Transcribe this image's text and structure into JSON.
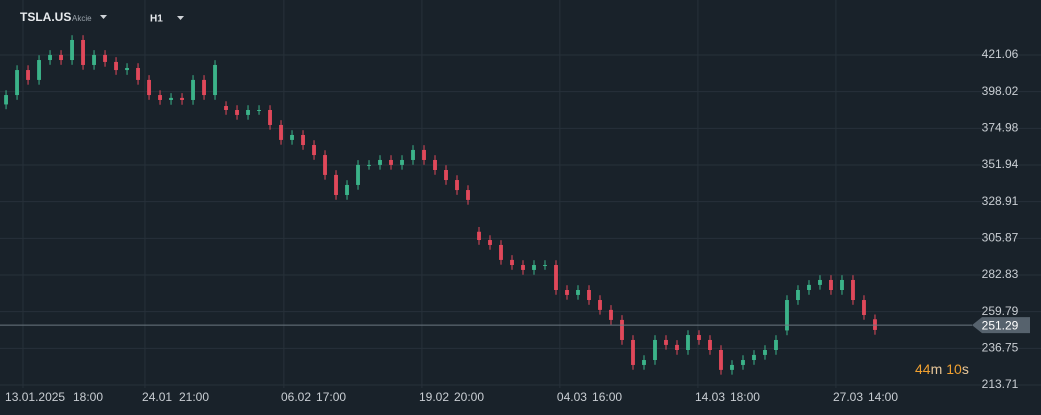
{
  "header": {
    "symbol": "TSLA.US",
    "asset_class": "Akcie",
    "timeframe": "H1"
  },
  "countdown": {
    "minutes": "44",
    "minutes_unit": "m",
    "seconds": "10",
    "seconds_unit": "s"
  },
  "chart_data": {
    "type": "candlestick",
    "x": [
      0,
      1,
      2,
      3,
      4,
      5,
      6,
      7,
      8,
      9,
      10,
      11,
      12,
      13,
      14,
      15,
      16,
      17,
      18,
      19,
      20,
      21,
      22,
      23,
      24,
      25,
      26,
      27,
      28,
      29,
      30,
      31,
      32,
      33,
      34,
      35,
      36,
      37,
      38,
      39,
      40,
      41,
      42,
      43,
      44,
      45,
      46,
      47,
      48,
      49,
      50,
      51,
      52,
      53,
      54,
      55,
      56,
      57,
      58,
      59,
      60,
      61,
      62,
      63,
      64,
      65,
      66,
      67,
      68,
      69,
      70,
      71,
      72,
      73,
      74,
      75,
      76,
      77,
      78,
      79
    ],
    "open": [
      390.0,
      395.9,
      411.6,
      405.4,
      417.9,
      421.1,
      417.9,
      430.5,
      414.8,
      421.1,
      416.7,
      411.6,
      412.9,
      405.4,
      395.9,
      392.8,
      394.1,
      392.8,
      405.4,
      395.9,
      389.0,
      386.5,
      383.4,
      386.5,
      386.5,
      377.1,
      367.7,
      370.8,
      364.5,
      358.2,
      345.7,
      333.1,
      339.4,
      352.0,
      352.0,
      355.1,
      352.0,
      355.1,
      361.4,
      355.1,
      348.8,
      342.5,
      336.2,
      310.0,
      304.8,
      301.7,
      292.3,
      289.1,
      286.0,
      289.1,
      289.1,
      273.4,
      270.3,
      273.4,
      267.1,
      260.9,
      254.6,
      242.0,
      226.3,
      229.4,
      242.0,
      238.9,
      235.7,
      245.1,
      242.0,
      235.7,
      223.2,
      226.3,
      229.4,
      232.6,
      235.7,
      248.0,
      267.1,
      273.4,
      276.6,
      279.7,
      273.4,
      279.7,
      267.1,
      255.0
    ],
    "high": [
      398.9,
      414.6,
      414.6,
      420.9,
      424.1,
      424.1,
      433.5,
      433.5,
      424.1,
      424.1,
      419.7,
      415.9,
      415.9,
      408.4,
      398.9,
      397.1,
      397.1,
      408.4,
      408.4,
      417.8,
      392.0,
      389.5,
      389.5,
      389.5,
      389.5,
      380.1,
      373.8,
      373.8,
      367.5,
      361.2,
      348.7,
      342.4,
      355.0,
      355.0,
      358.1,
      358.1,
      358.1,
      364.4,
      364.4,
      358.1,
      351.8,
      345.5,
      339.2,
      313.0,
      307.8,
      304.7,
      295.3,
      292.1,
      292.1,
      292.1,
      292.1,
      276.4,
      276.4,
      276.4,
      270.1,
      263.9,
      257.6,
      245.0,
      232.4,
      245.0,
      245.0,
      241.9,
      248.1,
      248.1,
      245.0,
      238.7,
      229.3,
      232.4,
      235.6,
      238.7,
      245.0,
      270.1,
      276.4,
      279.6,
      282.7,
      282.7,
      282.7,
      282.7,
      270.1,
      258.0
    ],
    "low": [
      387.0,
      392.9,
      402.4,
      402.4,
      414.9,
      414.9,
      414.9,
      411.8,
      411.8,
      413.7,
      408.6,
      408.6,
      402.4,
      392.9,
      389.8,
      389.8,
      389.8,
      389.8,
      392.9,
      392.9,
      383.5,
      380.4,
      380.4,
      383.5,
      374.1,
      364.7,
      364.7,
      361.5,
      355.2,
      342.7,
      330.1,
      330.1,
      336.4,
      349.0,
      349.0,
      349.0,
      349.0,
      352.1,
      352.1,
      345.8,
      339.5,
      333.2,
      327.0,
      301.8,
      298.7,
      289.3,
      286.1,
      283.0,
      283.0,
      286.1,
      270.4,
      267.3,
      267.3,
      264.1,
      257.9,
      251.6,
      239.0,
      223.3,
      223.3,
      226.4,
      235.9,
      232.7,
      232.7,
      239.0,
      232.7,
      220.2,
      220.2,
      223.3,
      226.4,
      229.6,
      232.7,
      245.0,
      264.1,
      270.4,
      273.6,
      270.4,
      270.4,
      264.1,
      254.7,
      245.3
    ],
    "close": [
      395.9,
      411.6,
      405.4,
      417.9,
      421.1,
      417.9,
      430.5,
      414.8,
      421.1,
      416.7,
      411.6,
      412.9,
      405.4,
      395.9,
      392.8,
      394.1,
      392.8,
      405.4,
      395.9,
      414.8,
      386.5,
      383.4,
      386.5,
      386.5,
      377.1,
      367.7,
      370.8,
      364.5,
      358.2,
      345.7,
      333.1,
      339.4,
      352.0,
      352.0,
      355.1,
      352.0,
      355.1,
      361.4,
      355.1,
      348.8,
      342.5,
      336.2,
      330.0,
      304.8,
      301.7,
      292.3,
      289.1,
      286.0,
      289.1,
      289.1,
      273.4,
      270.3,
      273.4,
      267.1,
      260.9,
      254.6,
      242.0,
      226.3,
      229.4,
      242.0,
      238.9,
      235.7,
      245.1,
      242.0,
      235.7,
      223.2,
      226.3,
      229.4,
      232.6,
      235.7,
      242.0,
      267.1,
      273.4,
      276.6,
      279.7,
      273.4,
      279.7,
      267.1,
      257.7,
      248.3
    ],
    "up_color": "#3bb389",
    "down_color": "#e0485a",
    "last_price": 251.29,
    "xlim": [
      -0.55,
      86.73
    ],
    "xticks": [
      {
        "value": 2.64,
        "label": "13.01.2025"
      },
      {
        "value": 7.45,
        "label": "18:00"
      },
      {
        "value": 13.73,
        "label": "24.01"
      },
      {
        "value": 17.09,
        "label": "21:00"
      },
      {
        "value": 26.36,
        "label": "06.02"
      },
      {
        "value": 29.55,
        "label": "17:00"
      },
      {
        "value": 38.91,
        "label": "19.02"
      },
      {
        "value": 42.09,
        "label": "20:00"
      },
      {
        "value": 51.45,
        "label": "04.03"
      },
      {
        "value": 54.64,
        "label": "16:00"
      },
      {
        "value": 64.0,
        "label": "14.03"
      },
      {
        "value": 67.18,
        "label": "18:00"
      },
      {
        "value": 76.55,
        "label": "27.03"
      },
      {
        "value": 79.73,
        "label": "14:00"
      }
    ],
    "ylim": [
      204.28,
      455.62
    ],
    "yticks": [
      213.71,
      236.75,
      259.79,
      282.83,
      305.87,
      328.91,
      351.94,
      374.98,
      398.02,
      421.06
    ],
    "grid": true
  }
}
